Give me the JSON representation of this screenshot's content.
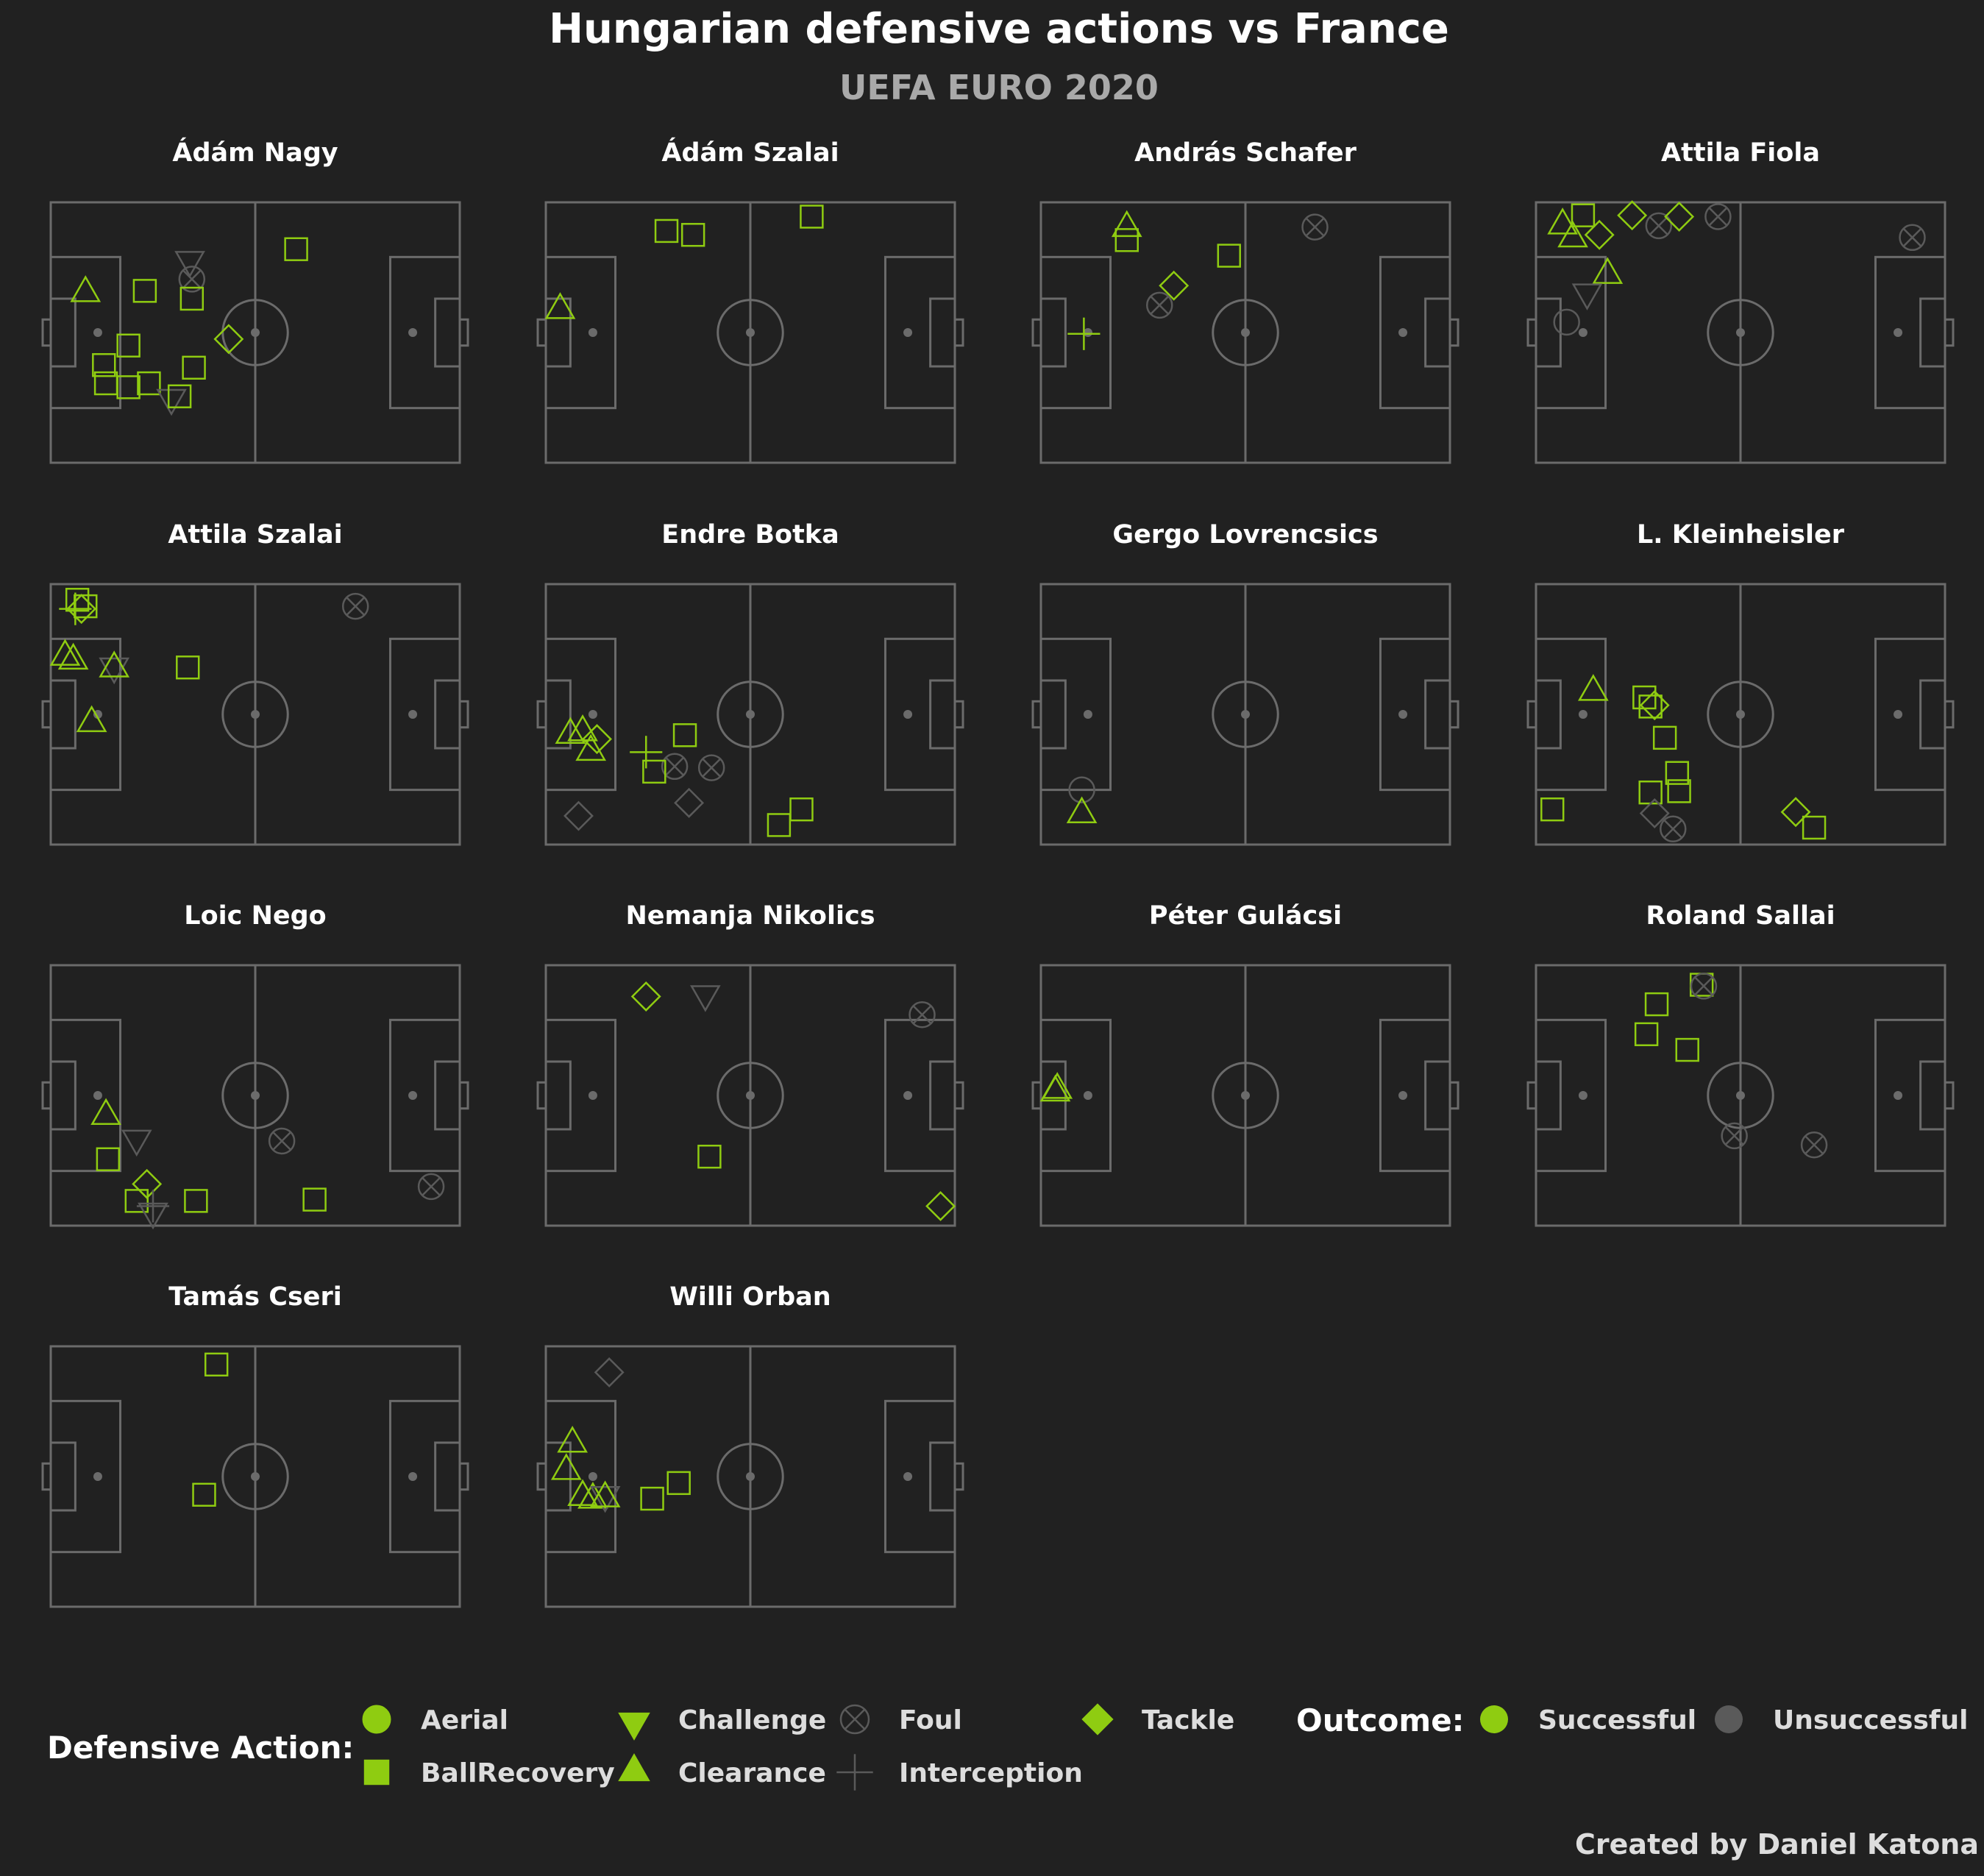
{
  "title": "Hungarian defensive actions vs France",
  "subtitle": "UEFA EURO 2020",
  "credit": "Created by Daniel Katona",
  "colors": {
    "background": "#212121",
    "pitch_lines": "#6b6b6b",
    "successful": "#8fcc11",
    "unsuccessful": "#5a5a5a",
    "text": "#ffffff",
    "subtitle_text": "#a9a9a9"
  },
  "legend": {
    "action_title": "Defensive Action:",
    "outcome_title": "Outcome:",
    "actions": [
      {
        "label": "Aerial",
        "shape": "circle"
      },
      {
        "label": "BallRecovery",
        "shape": "square"
      },
      {
        "label": "Challenge",
        "shape": "triangle-down"
      },
      {
        "label": "Clearance",
        "shape": "triangle-up"
      },
      {
        "label": "Foul",
        "shape": "circle-x"
      },
      {
        "label": "Interception",
        "shape": "plus"
      },
      {
        "label": "Tackle",
        "shape": "diamond"
      }
    ],
    "outcomes": [
      {
        "label": "Successful",
        "color": "#8fcc11"
      },
      {
        "label": "Unsuccessful",
        "color": "#5a5a5a"
      }
    ]
  },
  "chart_data": {
    "type": "scatter",
    "grid": false,
    "panel_layout": "4 columns of pitch panels, one per player",
    "pitch": {
      "x_range": [
        0,
        100
      ],
      "y_range": [
        0,
        100
      ]
    },
    "panels": [
      {
        "player": "Ádám Nagy",
        "points": [
          {
            "x": 8.5,
            "y": 66,
            "action": "Clearance",
            "outcome": "Successful"
          },
          {
            "x": 34,
            "y": 77,
            "action": "Challenge",
            "outcome": "Unsuccessful"
          },
          {
            "x": 34.5,
            "y": 70.5,
            "action": "Foul",
            "outcome": "Unsuccessful"
          },
          {
            "x": 60,
            "y": 82,
            "action": "BallRecovery",
            "outcome": "Successful"
          },
          {
            "x": 23,
            "y": 66,
            "action": "BallRecovery",
            "outcome": "Successful"
          },
          {
            "x": 34.5,
            "y": 63,
            "action": "BallRecovery",
            "outcome": "Successful"
          },
          {
            "x": 43.5,
            "y": 47.5,
            "action": "Tackle",
            "outcome": "Successful"
          },
          {
            "x": 19,
            "y": 45,
            "action": "BallRecovery",
            "outcome": "Successful"
          },
          {
            "x": 13,
            "y": 37.5,
            "action": "BallRecovery",
            "outcome": "Successful"
          },
          {
            "x": 35,
            "y": 36.5,
            "action": "BallRecovery",
            "outcome": "Successful"
          },
          {
            "x": 13.5,
            "y": 30.5,
            "action": "BallRecovery",
            "outcome": "Successful"
          },
          {
            "x": 19,
            "y": 29,
            "action": "BallRecovery",
            "outcome": "Successful"
          },
          {
            "x": 24,
            "y": 30.5,
            "action": "BallRecovery",
            "outcome": "Successful"
          },
          {
            "x": 29.5,
            "y": 24,
            "action": "Challenge",
            "outcome": "Unsuccessful"
          },
          {
            "x": 31.5,
            "y": 25.5,
            "action": "BallRecovery",
            "outcome": "Successful"
          }
        ]
      },
      {
        "player": "Ádám Szalai",
        "points": [
          {
            "x": 29.5,
            "y": 89,
            "action": "BallRecovery",
            "outcome": "Successful"
          },
          {
            "x": 36,
            "y": 87.5,
            "action": "BallRecovery",
            "outcome": "Successful"
          },
          {
            "x": 65,
            "y": 94.5,
            "action": "BallRecovery",
            "outcome": "Successful"
          },
          {
            "x": 3.5,
            "y": 59.5,
            "action": "Clearance",
            "outcome": "Successful"
          }
        ]
      },
      {
        "player": "András Schafer",
        "points": [
          {
            "x": 21,
            "y": 91,
            "action": "Clearance",
            "outcome": "Successful"
          },
          {
            "x": 21,
            "y": 85.5,
            "action": "BallRecovery",
            "outcome": "Successful"
          },
          {
            "x": 46,
            "y": 79.5,
            "action": "BallRecovery",
            "outcome": "Successful"
          },
          {
            "x": 67,
            "y": 90.5,
            "action": "Foul",
            "outcome": "Unsuccessful"
          },
          {
            "x": 32.5,
            "y": 68,
            "action": "Tackle",
            "outcome": "Successful"
          },
          {
            "x": 29,
            "y": 60.5,
            "action": "Foul",
            "outcome": "Unsuccessful"
          },
          {
            "x": 10.5,
            "y": 49.5,
            "action": "Interception",
            "outcome": "Successful"
          }
        ]
      },
      {
        "player": "Attila Fiola",
        "points": [
          {
            "x": 6.5,
            "y": 92,
            "action": "Clearance",
            "outcome": "Successful"
          },
          {
            "x": 11.5,
            "y": 95,
            "action": "BallRecovery",
            "outcome": "Successful"
          },
          {
            "x": 9,
            "y": 87,
            "action": "Clearance",
            "outcome": "Successful"
          },
          {
            "x": 15.5,
            "y": 87.5,
            "action": "Tackle",
            "outcome": "Successful"
          },
          {
            "x": 23.5,
            "y": 95,
            "action": "Tackle",
            "outcome": "Successful"
          },
          {
            "x": 30,
            "y": 91,
            "action": "Foul",
            "outcome": "Unsuccessful"
          },
          {
            "x": 35,
            "y": 94.5,
            "action": "Tackle",
            "outcome": "Successful"
          },
          {
            "x": 44.5,
            "y": 94.5,
            "action": "Foul",
            "outcome": "Unsuccessful"
          },
          {
            "x": 92,
            "y": 86.5,
            "action": "Foul",
            "outcome": "Unsuccessful"
          },
          {
            "x": 17.5,
            "y": 73,
            "action": "Clearance",
            "outcome": "Successful"
          },
          {
            "x": 12.5,
            "y": 64.5,
            "action": "Challenge",
            "outcome": "Unsuccessful"
          },
          {
            "x": 7.5,
            "y": 54,
            "action": "Aerial",
            "outcome": "Unsuccessful"
          }
        ]
      },
      {
        "player": "Attila Szalai",
        "points": [
          {
            "x": 6.5,
            "y": 94,
            "action": "BallRecovery",
            "outcome": "Successful"
          },
          {
            "x": 8.5,
            "y": 91.5,
            "action": "BallRecovery",
            "outcome": "Successful"
          },
          {
            "x": 6,
            "y": 90.5,
            "action": "Interception",
            "outcome": "Successful"
          },
          {
            "x": 7.5,
            "y": 90.5,
            "action": "Tackle",
            "outcome": "Successful"
          },
          {
            "x": 74.5,
            "y": 91.5,
            "action": "Foul",
            "outcome": "Unsuccessful"
          },
          {
            "x": 3.5,
            "y": 73,
            "action": "Clearance",
            "outcome": "Successful"
          },
          {
            "x": 5.5,
            "y": 71.5,
            "action": "Clearance",
            "outcome": "Successful"
          },
          {
            "x": 15.5,
            "y": 67.5,
            "action": "Challenge",
            "outcome": "Unsuccessful"
          },
          {
            "x": 15.5,
            "y": 68.5,
            "action": "Clearance",
            "outcome": "Successful"
          },
          {
            "x": 33.5,
            "y": 68,
            "action": "BallRecovery",
            "outcome": "Successful"
          },
          {
            "x": 10,
            "y": 47.5,
            "action": "Clearance",
            "outcome": "Successful"
          }
        ]
      },
      {
        "player": "Endre Botka",
        "points": [
          {
            "x": 6,
            "y": 43,
            "action": "Clearance",
            "outcome": "Successful"
          },
          {
            "x": 9,
            "y": 44,
            "action": "Clearance",
            "outcome": "Successful"
          },
          {
            "x": 12.5,
            "y": 40.5,
            "action": "Tackle",
            "outcome": "Successful"
          },
          {
            "x": 11,
            "y": 36.5,
            "action": "Clearance",
            "outcome": "Successful"
          },
          {
            "x": 34,
            "y": 42,
            "action": "BallRecovery",
            "outcome": "Successful"
          },
          {
            "x": 24.5,
            "y": 35.5,
            "action": "Interception",
            "outcome": "Successful"
          },
          {
            "x": 31.5,
            "y": 30,
            "action": "Foul",
            "outcome": "Unsuccessful"
          },
          {
            "x": 40.5,
            "y": 29.5,
            "action": "Foul",
            "outcome": "Unsuccessful"
          },
          {
            "x": 26.5,
            "y": 28,
            "action": "BallRecovery",
            "outcome": "Successful"
          },
          {
            "x": 8,
            "y": 11,
            "action": "Tackle",
            "outcome": "Unsuccessful"
          },
          {
            "x": 35,
            "y": 16,
            "action": "Tackle",
            "outcome": "Unsuccessful"
          },
          {
            "x": 62.5,
            "y": 13.5,
            "action": "BallRecovery",
            "outcome": "Successful"
          },
          {
            "x": 57,
            "y": 7.5,
            "action": "BallRecovery",
            "outcome": "Successful"
          }
        ]
      },
      {
        "player": "Gergo Lovrencsics",
        "points": [
          {
            "x": 10,
            "y": 21,
            "action": "Aerial",
            "outcome": "Unsuccessful"
          },
          {
            "x": 10,
            "y": 12.5,
            "action": "Clearance",
            "outcome": "Successful"
          }
        ]
      },
      {
        "player": "L. Kleinheisler",
        "points": [
          {
            "x": 14,
            "y": 59.5,
            "action": "Clearance",
            "outcome": "Successful"
          },
          {
            "x": 26.5,
            "y": 56.5,
            "action": "BallRecovery",
            "outcome": "Successful"
          },
          {
            "x": 28,
            "y": 53,
            "action": "BallRecovery",
            "outcome": "Successful"
          },
          {
            "x": 29,
            "y": 53.5,
            "action": "Tackle",
            "outcome": "Successful"
          },
          {
            "x": 31.5,
            "y": 41,
            "action": "BallRecovery",
            "outcome": "Successful"
          },
          {
            "x": 34.5,
            "y": 27.5,
            "action": "BallRecovery",
            "outcome": "Successful"
          },
          {
            "x": 28,
            "y": 20,
            "action": "BallRecovery",
            "outcome": "Successful"
          },
          {
            "x": 35,
            "y": 20.5,
            "action": "BallRecovery",
            "outcome": "Successful"
          },
          {
            "x": 4,
            "y": 13.5,
            "action": "BallRecovery",
            "outcome": "Successful"
          },
          {
            "x": 29,
            "y": 12,
            "action": "Tackle",
            "outcome": "Unsuccessful"
          },
          {
            "x": 33.5,
            "y": 6,
            "action": "Foul",
            "outcome": "Unsuccessful"
          },
          {
            "x": 63.5,
            "y": 12.5,
            "action": "Tackle",
            "outcome": "Successful"
          },
          {
            "x": 68,
            "y": 6.5,
            "action": "BallRecovery",
            "outcome": "Successful"
          }
        ]
      },
      {
        "player": "Loic Nego",
        "points": [
          {
            "x": 13.5,
            "y": 43,
            "action": "Clearance",
            "outcome": "Successful"
          },
          {
            "x": 21,
            "y": 32.5,
            "action": "Challenge",
            "outcome": "Unsuccessful"
          },
          {
            "x": 56.5,
            "y": 32.5,
            "action": "Foul",
            "outcome": "Unsuccessful"
          },
          {
            "x": 14,
            "y": 25.5,
            "action": "BallRecovery",
            "outcome": "Successful"
          },
          {
            "x": 23.5,
            "y": 16,
            "action": "Tackle",
            "outcome": "Successful"
          },
          {
            "x": 21,
            "y": 9.5,
            "action": "BallRecovery",
            "outcome": "Successful"
          },
          {
            "x": 25,
            "y": 7.5,
            "action": "Interception",
            "outcome": "Unsuccessful"
          },
          {
            "x": 25,
            "y": 4.5,
            "action": "Challenge",
            "outcome": "Unsuccessful"
          },
          {
            "x": 35.5,
            "y": 9.5,
            "action": "BallRecovery",
            "outcome": "Successful"
          },
          {
            "x": 64.5,
            "y": 10,
            "action": "BallRecovery",
            "outcome": "Successful"
          },
          {
            "x": 93,
            "y": 15,
            "action": "Foul",
            "outcome": "Unsuccessful"
          }
        ]
      },
      {
        "player": "Nemanja Nikolics",
        "points": [
          {
            "x": 24.5,
            "y": 88,
            "action": "Tackle",
            "outcome": "Successful"
          },
          {
            "x": 39,
            "y": 88,
            "action": "Challenge",
            "outcome": "Unsuccessful"
          },
          {
            "x": 92,
            "y": 81,
            "action": "Foul",
            "outcome": "Unsuccessful"
          },
          {
            "x": 40,
            "y": 26.5,
            "action": "BallRecovery",
            "outcome": "Successful"
          },
          {
            "x": 96.5,
            "y": 7.5,
            "action": "Tackle",
            "outcome": "Successful"
          }
        ]
      },
      {
        "player": "Péter Gulácsi",
        "points": [
          {
            "x": 3.5,
            "y": 52,
            "action": "Clearance",
            "outcome": "Successful"
          },
          {
            "x": 4,
            "y": 53,
            "action": "Clearance",
            "outcome": "Successful"
          }
        ]
      },
      {
        "player": "Roland Sallai",
        "points": [
          {
            "x": 40.5,
            "y": 92.5,
            "action": "BallRecovery",
            "outcome": "Successful"
          },
          {
            "x": 41,
            "y": 92,
            "action": "Foul",
            "outcome": "Unsuccessful"
          },
          {
            "x": 29.5,
            "y": 85,
            "action": "BallRecovery",
            "outcome": "Successful"
          },
          {
            "x": 27,
            "y": 73.5,
            "action": "BallRecovery",
            "outcome": "Successful"
          },
          {
            "x": 37,
            "y": 67.5,
            "action": "BallRecovery",
            "outcome": "Successful"
          },
          {
            "x": 48.5,
            "y": 34.5,
            "action": "Foul",
            "outcome": "Unsuccessful"
          },
          {
            "x": 68,
            "y": 31,
            "action": "Foul",
            "outcome": "Unsuccessful"
          }
        ]
      },
      {
        "player": "Tamás Cseri",
        "points": [
          {
            "x": 40.5,
            "y": 93,
            "action": "BallRecovery",
            "outcome": "Successful"
          },
          {
            "x": 37.5,
            "y": 43,
            "action": "BallRecovery",
            "outcome": "Successful"
          }
        ]
      },
      {
        "player": "Willi Orban",
        "points": [
          {
            "x": 15.5,
            "y": 90,
            "action": "Tackle",
            "outcome": "Unsuccessful"
          },
          {
            "x": 6.5,
            "y": 63.5,
            "action": "Clearance",
            "outcome": "Successful"
          },
          {
            "x": 5,
            "y": 53,
            "action": "Clearance",
            "outcome": "Successful"
          },
          {
            "x": 9,
            "y": 43,
            "action": "Clearance",
            "outcome": "Successful"
          },
          {
            "x": 11.5,
            "y": 42,
            "action": "Clearance",
            "outcome": "Successful"
          },
          {
            "x": 14.5,
            "y": 42,
            "action": "Challenge",
            "outcome": "Unsuccessful"
          },
          {
            "x": 14.5,
            "y": 42.5,
            "action": "Clearance",
            "outcome": "Successful"
          },
          {
            "x": 32.5,
            "y": 47.5,
            "action": "BallRecovery",
            "outcome": "Successful"
          },
          {
            "x": 26,
            "y": 41.5,
            "action": "BallRecovery",
            "outcome": "Successful"
          }
        ]
      }
    ]
  }
}
